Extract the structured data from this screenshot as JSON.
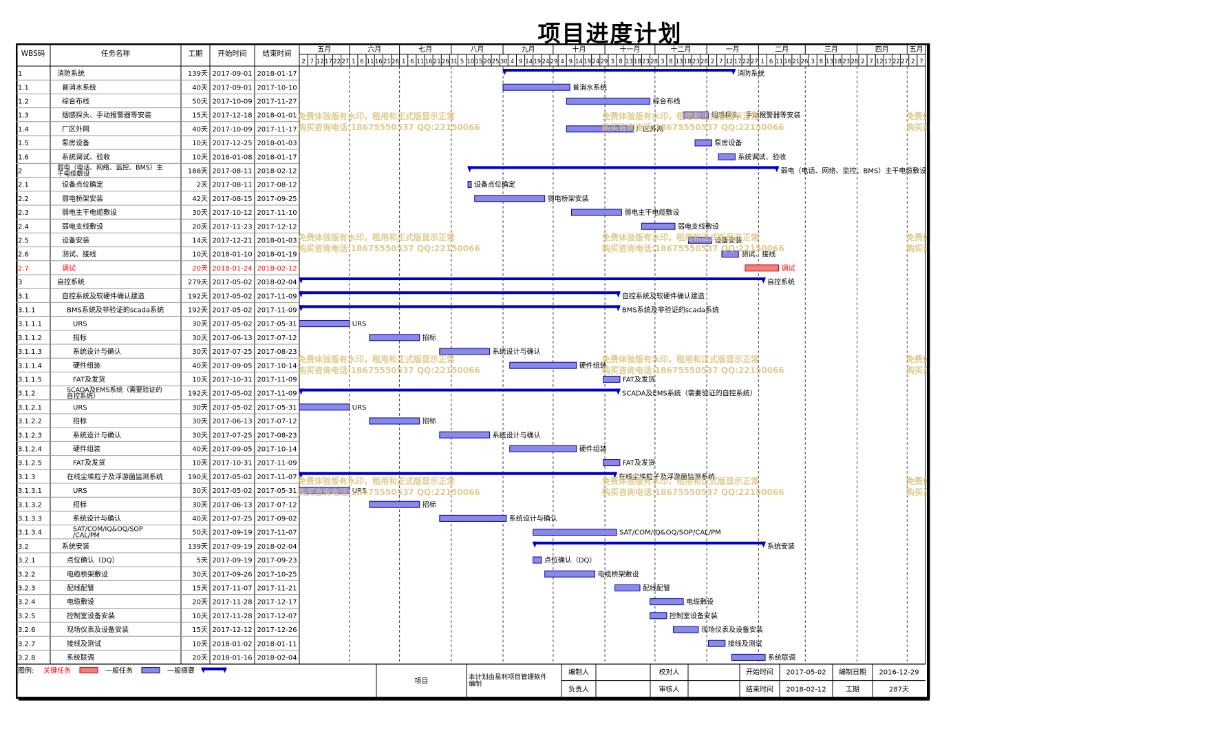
{
  "title": "项目进度计划",
  "colors": {
    "critical": "#f08080",
    "task": "#8a8ae6",
    "summary": "#0000cc",
    "watermark": "#d9c27a",
    "critical_text": "#ff0000"
  },
  "chart_data": {
    "type": "gantt",
    "timeline_start": "2017-05-02",
    "timeline_end": "2018-05-12",
    "columns": [
      "WBS码",
      "任务名称",
      "工期",
      "开始时间",
      "结束时间"
    ],
    "months": [
      {
        "label": "五月",
        "start": "2017-05-02"
      },
      {
        "label": "六月",
        "start": "2017-06-01"
      },
      {
        "label": "七月",
        "start": "2017-07-01"
      },
      {
        "label": "八月",
        "start": "2017-08-01"
      },
      {
        "label": "九月",
        "start": "2017-09-01"
      },
      {
        "label": "十月",
        "start": "2017-10-01"
      },
      {
        "label": "十一月",
        "start": "2017-11-01"
      },
      {
        "label": "十二月",
        "start": "2017-12-01"
      },
      {
        "label": "一月",
        "start": "2018-01-01"
      },
      {
        "label": "二月",
        "start": "2018-02-01"
      },
      {
        "label": "三月",
        "start": "2018-03-01"
      },
      {
        "label": "四月",
        "start": "2018-04-01"
      },
      {
        "label": "五月",
        "start": "2018-05-01"
      }
    ],
    "day_ticks": [
      "2017-05-02",
      "2017-05-07",
      "2017-05-12",
      "2017-05-17",
      "2017-05-22",
      "2017-05-27",
      "2017-06-01",
      "2017-06-06",
      "2017-06-11",
      "2017-06-16",
      "2017-06-21",
      "2017-06-26",
      "2017-07-01",
      "2017-07-06",
      "2017-07-11",
      "2017-07-16",
      "2017-07-21",
      "2017-07-26",
      "2017-07-31",
      "2017-08-05",
      "2017-08-10",
      "2017-08-15",
      "2017-08-20",
      "2017-08-25",
      "2017-08-30",
      "2017-09-04",
      "2017-09-09",
      "2017-09-14",
      "2017-09-19",
      "2017-09-24",
      "2017-09-29",
      "2017-10-04",
      "2017-10-09",
      "2017-10-14",
      "2017-10-19",
      "2017-10-24",
      "2017-10-29",
      "2017-11-03",
      "2017-11-08",
      "2017-11-13",
      "2017-11-18",
      "2017-11-23",
      "2017-11-28",
      "2017-12-03",
      "2017-12-08",
      "2017-12-13",
      "2017-12-18",
      "2017-12-23",
      "2017-12-28",
      "2018-01-02",
      "2018-01-07",
      "2018-01-12",
      "2018-01-17",
      "2018-01-22",
      "2018-01-27",
      "2018-02-01",
      "2018-02-06",
      "2018-02-11",
      "2018-02-16",
      "2018-02-21",
      "2018-02-26",
      "2018-03-03",
      "2018-03-08",
      "2018-03-13",
      "2018-03-18",
      "2018-03-23",
      "2018-03-28",
      "2018-04-02",
      "2018-04-07",
      "2018-04-12",
      "2018-04-17",
      "2018-04-22",
      "2018-04-27",
      "2018-05-02",
      "2018-05-07",
      "2018-05-12"
    ],
    "tasks": [
      {
        "wbs": "1",
        "name": "消防系统",
        "duration": "139天",
        "start": "2017-09-01",
        "end": "2018-01-17",
        "kind": "summary",
        "level": 0
      },
      {
        "wbs": "1.1",
        "name": "普消水系统",
        "duration": "40天",
        "start": "2017-09-01",
        "end": "2017-10-10",
        "kind": "task",
        "level": 1
      },
      {
        "wbs": "1.2",
        "name": "综合布线",
        "duration": "50天",
        "start": "2017-10-09",
        "end": "2017-11-27",
        "kind": "task",
        "level": 1
      },
      {
        "wbs": "1.3",
        "name": "烟感探头、手动报警器等安装",
        "duration": "15天",
        "start": "2017-12-18",
        "end": "2018-01-01",
        "kind": "task",
        "level": 1
      },
      {
        "wbs": "1.4",
        "name": "厂区外网",
        "duration": "40天",
        "start": "2017-10-09",
        "end": "2017-11-17",
        "kind": "task",
        "level": 1
      },
      {
        "wbs": "1.5",
        "name": "泵房设备",
        "duration": "10天",
        "start": "2017-12-25",
        "end": "2018-01-03",
        "kind": "task",
        "level": 1
      },
      {
        "wbs": "1.6",
        "name": "系统调试、验收",
        "duration": "10天",
        "start": "2018-01-08",
        "end": "2018-01-17",
        "kind": "task",
        "level": 1
      },
      {
        "wbs": "2",
        "name": "弱电（电话、网络、监控、BMS）主干电缆敷设",
        "duration": "186天",
        "start": "2017-08-11",
        "end": "2018-02-12",
        "kind": "summary",
        "level": 0
      },
      {
        "wbs": "2.1",
        "name": "设备点位确定",
        "duration": "2天",
        "start": "2017-08-11",
        "end": "2017-08-12",
        "kind": "task",
        "level": 1
      },
      {
        "wbs": "2.2",
        "name": "弱电桥架安装",
        "duration": "42天",
        "start": "2017-08-15",
        "end": "2017-09-25",
        "kind": "task",
        "level": 1
      },
      {
        "wbs": "2.3",
        "name": "弱电主干电缆敷设",
        "duration": "30天",
        "start": "2017-10-12",
        "end": "2017-11-10",
        "kind": "task",
        "level": 1
      },
      {
        "wbs": "2.4",
        "name": "弱电支线敷设",
        "duration": "20天",
        "start": "2017-11-23",
        "end": "2017-12-12",
        "kind": "task",
        "level": 1
      },
      {
        "wbs": "2.5",
        "name": "设备安装",
        "duration": "14天",
        "start": "2017-12-21",
        "end": "2018-01-03",
        "kind": "task",
        "level": 1
      },
      {
        "wbs": "2.6",
        "name": "测试、接线",
        "duration": "10天",
        "start": "2018-01-10",
        "end": "2018-01-19",
        "kind": "task",
        "level": 1
      },
      {
        "wbs": "2.7",
        "name": "调试",
        "duration": "20天",
        "start": "2018-01-24",
        "end": "2018-02-12",
        "kind": "critical",
        "level": 1
      },
      {
        "wbs": "3",
        "name": "自控系统",
        "duration": "279天",
        "start": "2017-05-02",
        "end": "2018-02-04",
        "kind": "summary",
        "level": 0
      },
      {
        "wbs": "3.1",
        "name": "自控系统及软硬件确认建造",
        "duration": "192天",
        "start": "2017-05-02",
        "end": "2017-11-09",
        "kind": "summary",
        "level": 1
      },
      {
        "wbs": "3.1.1",
        "name": "BMS系统及非验证的scada系统",
        "duration": "192天",
        "start": "2017-05-02",
        "end": "2017-11-09",
        "kind": "summary",
        "level": 2
      },
      {
        "wbs": "3.1.1.1",
        "name": "URS",
        "duration": "30天",
        "start": "2017-05-02",
        "end": "2017-05-31",
        "kind": "task",
        "level": 3
      },
      {
        "wbs": "3.1.1.2",
        "name": "招标",
        "duration": "30天",
        "start": "2017-06-13",
        "end": "2017-07-12",
        "kind": "task",
        "level": 3
      },
      {
        "wbs": "3.1.1.3",
        "name": "系统设计与确认",
        "duration": "30天",
        "start": "2017-07-25",
        "end": "2017-08-23",
        "kind": "task",
        "level": 3
      },
      {
        "wbs": "3.1.1.4",
        "name": "硬件组装",
        "duration": "40天",
        "start": "2017-09-05",
        "end": "2017-10-14",
        "kind": "task",
        "level": 3
      },
      {
        "wbs": "3.1.1.5",
        "name": "FAT及发货",
        "duration": "10天",
        "start": "2017-10-31",
        "end": "2017-11-09",
        "kind": "task",
        "level": 3
      },
      {
        "wbs": "3.1.2",
        "name": "SCADA及EMS系统（需要验证的自控系统）",
        "duration": "192天",
        "start": "2017-05-02",
        "end": "2017-11-09",
        "kind": "summary",
        "level": 2
      },
      {
        "wbs": "3.1.2.1",
        "name": "URS",
        "duration": "30天",
        "start": "2017-05-02",
        "end": "2017-05-31",
        "kind": "task",
        "level": 3
      },
      {
        "wbs": "3.1.2.2",
        "name": "招标",
        "duration": "30天",
        "start": "2017-06-13",
        "end": "2017-07-12",
        "kind": "task",
        "level": 3
      },
      {
        "wbs": "3.1.2.3",
        "name": "系统设计与确认",
        "duration": "30天",
        "start": "2017-07-25",
        "end": "2017-08-23",
        "kind": "task",
        "level": 3
      },
      {
        "wbs": "3.1.2.4",
        "name": "硬件组装",
        "duration": "40天",
        "start": "2017-09-05",
        "end": "2017-10-14",
        "kind": "task",
        "level": 3
      },
      {
        "wbs": "3.1.2.5",
        "name": "FAT及发货",
        "duration": "10天",
        "start": "2017-10-31",
        "end": "2017-11-09",
        "kind": "task",
        "level": 3
      },
      {
        "wbs": "3.1.3",
        "name": "在线尘埃粒子及浮游菌监测系统",
        "duration": "190天",
        "start": "2017-05-02",
        "end": "2017-11-07",
        "kind": "summary",
        "level": 2
      },
      {
        "wbs": "3.1.3.1",
        "name": "URS",
        "duration": "30天",
        "start": "2017-05-02",
        "end": "2017-05-31",
        "kind": "task",
        "level": 3
      },
      {
        "wbs": "3.1.3.2",
        "name": "招标",
        "duration": "30天",
        "start": "2017-06-13",
        "end": "2017-07-12",
        "kind": "task",
        "level": 3
      },
      {
        "wbs": "3.1.3.3",
        "name": "系统设计与确认",
        "duration": "40天",
        "start": "2017-07-25",
        "end": "2017-09-02",
        "kind": "task",
        "level": 3
      },
      {
        "wbs": "3.1.3.4",
        "name": "SAT/COM/IQ&OQ/SOP/CAL/PM",
        "duration": "50天",
        "start": "2017-09-19",
        "end": "2017-11-07",
        "kind": "task",
        "level": 3
      },
      {
        "wbs": "3.2",
        "name": "系统安装",
        "duration": "139天",
        "start": "2017-09-19",
        "end": "2018-02-04",
        "kind": "summary",
        "level": 1
      },
      {
        "wbs": "3.2.1",
        "name": "点位确认（DQ）",
        "duration": "5天",
        "start": "2017-09-19",
        "end": "2017-09-23",
        "kind": "task",
        "level": 2
      },
      {
        "wbs": "3.2.2",
        "name": "电缆桥架敷设",
        "duration": "30天",
        "start": "2017-09-26",
        "end": "2017-10-25",
        "kind": "task",
        "level": 2
      },
      {
        "wbs": "3.2.3",
        "name": "配线配管",
        "duration": "15天",
        "start": "2017-11-07",
        "end": "2017-11-21",
        "kind": "task",
        "level": 2
      },
      {
        "wbs": "3.2.4",
        "name": "电缆敷设",
        "duration": "20天",
        "start": "2017-11-28",
        "end": "2017-12-17",
        "kind": "task",
        "level": 2
      },
      {
        "wbs": "3.2.5",
        "name": "控制室设备安装",
        "duration": "10天",
        "start": "2017-11-28",
        "end": "2017-12-07",
        "kind": "task",
        "level": 2
      },
      {
        "wbs": "3.2.6",
        "name": "现场仪表及设备安装",
        "duration": "15天",
        "start": "2017-12-12",
        "end": "2017-12-26",
        "kind": "task",
        "level": 2
      },
      {
        "wbs": "3.2.7",
        "name": "接线及测试",
        "duration": "10天",
        "start": "2018-01-02",
        "end": "2018-01-11",
        "kind": "task",
        "level": 2
      },
      {
        "wbs": "3.2.8",
        "name": "系统联调",
        "duration": "20天",
        "start": "2018-01-16",
        "end": "2018-02-04",
        "kind": "task",
        "level": 2
      }
    ]
  },
  "legend": {
    "label": "图例:",
    "critical": "关键任务",
    "task": "一般任务",
    "summary": "一般摘要"
  },
  "footer": {
    "project_label": "项目",
    "note": "本计划由易利项目管理软件编制",
    "editor_label": "编制人",
    "reviewer_label": "校对人",
    "owner_label": "负责人",
    "approver_label": "审核人",
    "start_label": "开始时间",
    "start_value": "2017-05-02",
    "compiled_label": "编制日期",
    "compiled_value": "2016-12-29",
    "end_label": "结束时间",
    "end_value": "2018-02-12",
    "duration_label": "工期",
    "duration_value": "287天"
  },
  "watermark": {
    "line1": "免费体验版有水印，租用和正式版显示正常",
    "line2": "购买咨询电话:18675550537 QQ:22150066"
  }
}
